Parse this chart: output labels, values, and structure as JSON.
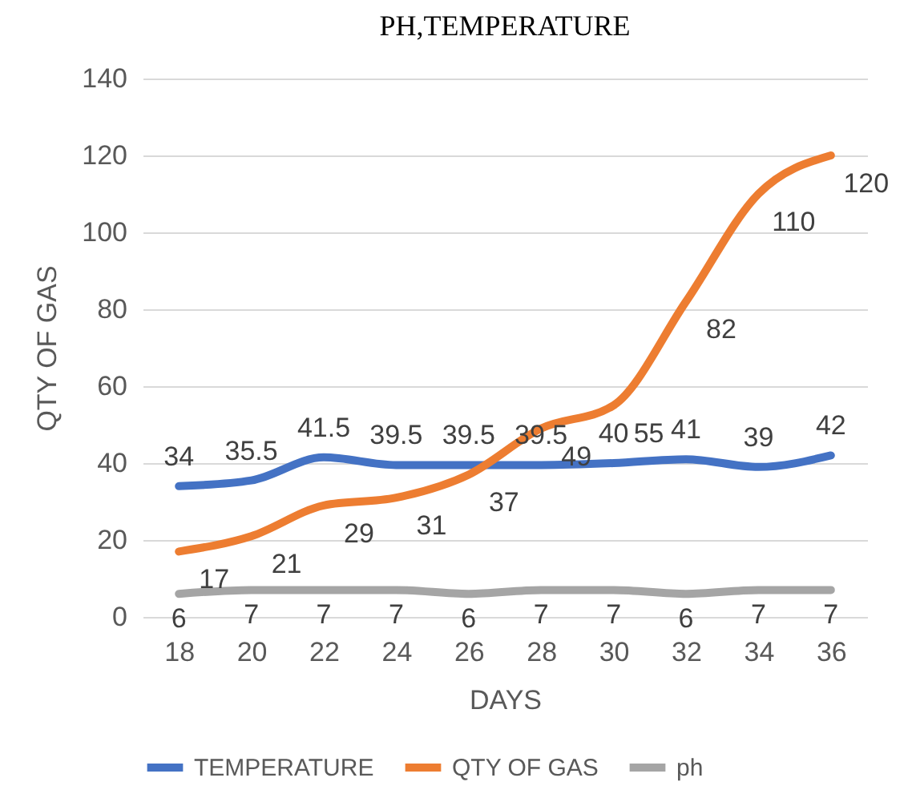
{
  "chart_data": {
    "type": "line",
    "title": "PH,TEMPERATURE",
    "xlabel": "DAYS",
    "ylabel": "QTY OF GAS",
    "categories": [
      "18",
      "20",
      "22",
      "24",
      "26",
      "28",
      "30",
      "32",
      "34",
      "36"
    ],
    "series": [
      {
        "name": "TEMPERATURE",
        "color": "#4472c4",
        "values": [
          34,
          35.5,
          41.5,
          39.5,
          39.5,
          39.5,
          40,
          41,
          39,
          42
        ]
      },
      {
        "name": "QTY OF GAS",
        "color": "#ed7d31",
        "values": [
          17,
          21,
          29,
          31,
          37,
          49,
          55,
          82,
          110,
          120
        ]
      },
      {
        "name": "ph",
        "color": "#a5a5a5",
        "values": [
          6,
          7,
          7,
          7,
          6,
          7,
          7,
          6,
          7,
          7
        ]
      }
    ],
    "ylim": [
      0,
      140
    ],
    "yticks": [
      0,
      20,
      40,
      60,
      80,
      100,
      120,
      140
    ],
    "grid": "y",
    "legend": "bottom",
    "data_labels": true,
    "marker": "none"
  }
}
